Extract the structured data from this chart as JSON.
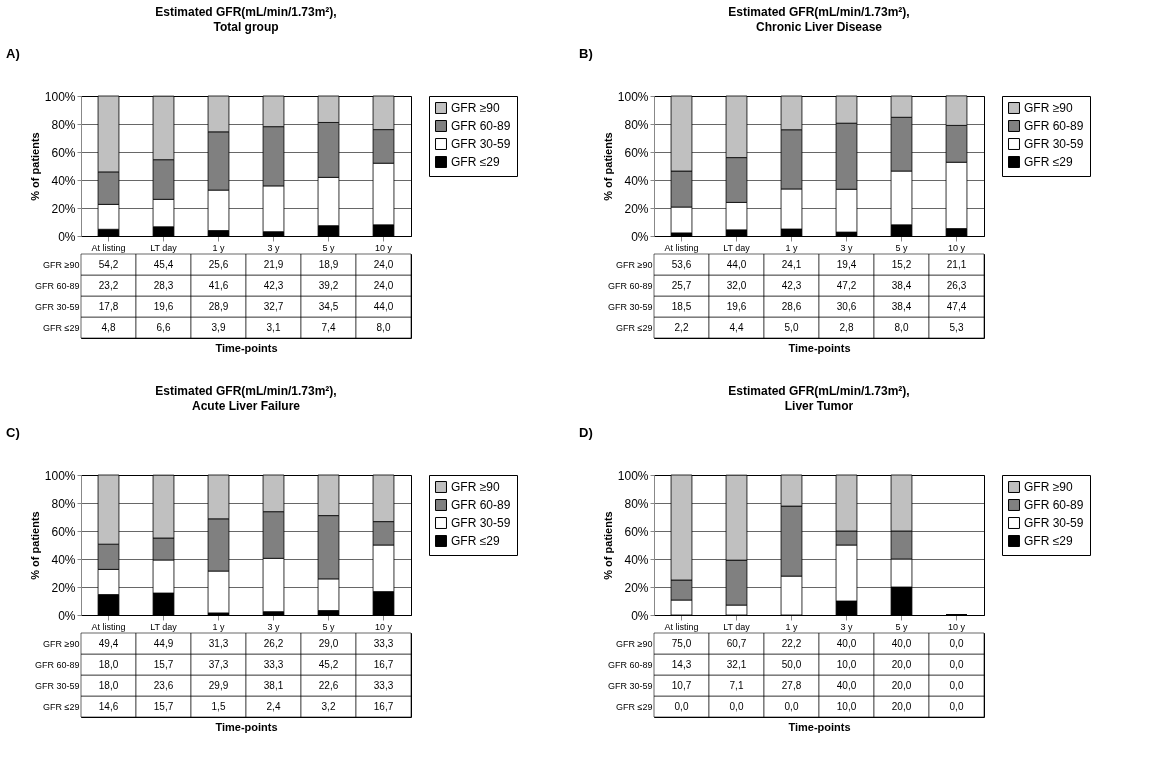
{
  "chart_data": [
    {
      "type": "bar",
      "stacked": true,
      "title": "Estimated GFR(mL/min/1.73m²),",
      "subtitle": "Total group",
      "annotations": [
        "A)"
      ],
      "xlabel": "Time-points",
      "ylabel": "% of patients",
      "categories": [
        "At listing",
        "LT day",
        "1 y",
        "3 y",
        "5 y",
        "10 y"
      ],
      "ylim": [
        0,
        100
      ],
      "yticks": [
        {
          "value": 0,
          "label": "0%"
        },
        {
          "value": 20,
          "label": "20%"
        },
        {
          "value": 40,
          "label": "40%"
        },
        {
          "value": 60,
          "label": "60%"
        },
        {
          "value": 80,
          "label": "80%"
        },
        {
          "value": 100,
          "label": "100%"
        }
      ],
      "grid": "y",
      "legend": "right",
      "series": [
        {
          "name": "GFR ≤29",
          "color": "#000000",
          "values": [
            4.8,
            6.6,
            3.9,
            3.1,
            7.4,
            8.0
          ],
          "value_labels": [
            "4,8",
            "6,6",
            "3,9",
            "3,1",
            "7,4",
            "8,0"
          ]
        },
        {
          "name": "GFR 30-59",
          "color": "#ffffff",
          "values": [
            17.8,
            19.6,
            28.9,
            32.7,
            34.5,
            44.0
          ],
          "value_labels": [
            "17,8",
            "19,6",
            "28,9",
            "32,7",
            "34,5",
            "44,0"
          ]
        },
        {
          "name": "GFR 60-89",
          "color": "#808080",
          "values": [
            23.2,
            28.3,
            41.6,
            42.3,
            39.2,
            24.0
          ],
          "value_labels": [
            "23,2",
            "28,3",
            "41,6",
            "42,3",
            "39,2",
            "24,0"
          ]
        },
        {
          "name": "GFR ≥90",
          "color": "#c0c0c0",
          "values": [
            54.2,
            45.4,
            25.6,
            21.9,
            18.9,
            24.0
          ],
          "value_labels": [
            "54,2",
            "45,4",
            "25,6",
            "21,9",
            "18,9",
            "24,0"
          ]
        }
      ]
    },
    {
      "type": "bar",
      "stacked": true,
      "title": "Estimated GFR(mL/min/1.73m²),",
      "subtitle": "Chronic Liver Disease",
      "annotations": [
        "B)"
      ],
      "xlabel": "Time-points",
      "ylabel": "% of patients",
      "categories": [
        "At listing",
        "LT day",
        "1 y",
        "3 y",
        "5 y",
        "10 y"
      ],
      "ylim": [
        0,
        100
      ],
      "yticks": [
        {
          "value": 0,
          "label": "0%"
        },
        {
          "value": 20,
          "label": "20%"
        },
        {
          "value": 40,
          "label": "40%"
        },
        {
          "value": 60,
          "label": "60%"
        },
        {
          "value": 80,
          "label": "80%"
        },
        {
          "value": 100,
          "label": "100%"
        }
      ],
      "grid": "y",
      "legend": "right",
      "series": [
        {
          "name": "GFR ≤29",
          "color": "#000000",
          "values": [
            2.2,
            4.4,
            5.0,
            2.8,
            8.0,
            5.3
          ],
          "value_labels": [
            "2,2",
            "4,4",
            "5,0",
            "2,8",
            "8,0",
            "5,3"
          ]
        },
        {
          "name": "GFR 30-59",
          "color": "#ffffff",
          "values": [
            18.5,
            19.6,
            28.6,
            30.6,
            38.4,
            47.4
          ],
          "value_labels": [
            "18,5",
            "19,6",
            "28,6",
            "30,6",
            "38,4",
            "47,4"
          ]
        },
        {
          "name": "GFR 60-89",
          "color": "#808080",
          "values": [
            25.7,
            32.0,
            42.3,
            47.2,
            38.4,
            26.3
          ],
          "value_labels": [
            "25,7",
            "32,0",
            "42,3",
            "47,2",
            "38,4",
            "26,3"
          ]
        },
        {
          "name": "GFR ≥90",
          "color": "#c0c0c0",
          "values": [
            53.6,
            44.0,
            24.1,
            19.4,
            15.2,
            21.1
          ],
          "value_labels": [
            "53,6",
            "44,0",
            "24,1",
            "19,4",
            "15,2",
            "21,1"
          ]
        }
      ]
    },
    {
      "type": "bar",
      "stacked": true,
      "title": "Estimated GFR(mL/min/1.73m²),",
      "subtitle": "Acute Liver Failure",
      "annotations": [
        "C)"
      ],
      "xlabel": "Time-points",
      "ylabel": "% of patients",
      "categories": [
        "At listing",
        "LT day",
        "1 y",
        "3 y",
        "5 y",
        "10 y"
      ],
      "ylim": [
        0,
        100
      ],
      "yticks": [
        {
          "value": 0,
          "label": "0%"
        },
        {
          "value": 20,
          "label": "20%"
        },
        {
          "value": 40,
          "label": "40%"
        },
        {
          "value": 60,
          "label": "60%"
        },
        {
          "value": 80,
          "label": "80%"
        },
        {
          "value": 100,
          "label": "100%"
        }
      ],
      "grid": "y",
      "legend": "right",
      "series": [
        {
          "name": "GFR ≤29",
          "color": "#000000",
          "values": [
            14.6,
            15.7,
            1.5,
            2.4,
            3.2,
            16.7
          ],
          "value_labels": [
            "14,6",
            "15,7",
            "1,5",
            "2,4",
            "3,2",
            "16,7"
          ]
        },
        {
          "name": "GFR 30-59",
          "color": "#ffffff",
          "values": [
            18.0,
            23.6,
            29.9,
            38.1,
            22.6,
            33.3
          ],
          "value_labels": [
            "18,0",
            "23,6",
            "29,9",
            "38,1",
            "22,6",
            "33,3"
          ]
        },
        {
          "name": "GFR 60-89",
          "color": "#808080",
          "values": [
            18.0,
            15.7,
            37.3,
            33.3,
            45.2,
            16.7
          ],
          "value_labels": [
            "18,0",
            "15,7",
            "37,3",
            "33,3",
            "45,2",
            "16,7"
          ]
        },
        {
          "name": "GFR ≥90",
          "color": "#c0c0c0",
          "values": [
            49.4,
            44.9,
            31.3,
            26.2,
            29.0,
            33.3
          ],
          "value_labels": [
            "49,4",
            "44,9",
            "31,3",
            "26,2",
            "29,0",
            "33,3"
          ]
        }
      ]
    },
    {
      "type": "bar",
      "stacked": true,
      "title": "Estimated GFR(mL/min/1.73m²),",
      "subtitle": "Liver Tumor",
      "annotations": [
        "D)"
      ],
      "xlabel": "Time-points",
      "ylabel": "% of patients",
      "categories": [
        "At listing",
        "LT day",
        "1 y",
        "3 y",
        "5 y",
        "10 y"
      ],
      "ylim": [
        0,
        100
      ],
      "yticks": [
        {
          "value": 0,
          "label": "0%"
        },
        {
          "value": 20,
          "label": "20%"
        },
        {
          "value": 40,
          "label": "40%"
        },
        {
          "value": 60,
          "label": "60%"
        },
        {
          "value": 80,
          "label": "80%"
        },
        {
          "value": 100,
          "label": "100%"
        }
      ],
      "grid": "y",
      "legend": "right",
      "series": [
        {
          "name": "GFR ≤29",
          "color": "#000000",
          "values": [
            0.0,
            0.0,
            0.0,
            10.0,
            20.0,
            0.0
          ],
          "value_labels": [
            "0,0",
            "0,0",
            "0,0",
            "10,0",
            "20,0",
            "0,0"
          ]
        },
        {
          "name": "GFR 30-59",
          "color": "#ffffff",
          "values": [
            10.7,
            7.1,
            27.8,
            40.0,
            20.0,
            0.0
          ],
          "value_labels": [
            "10,7",
            "7,1",
            "27,8",
            "40,0",
            "20,0",
            "0,0"
          ]
        },
        {
          "name": "GFR 60-89",
          "color": "#808080",
          "values": [
            14.3,
            32.1,
            50.0,
            10.0,
            20.0,
            0.0
          ],
          "value_labels": [
            "14,3",
            "32,1",
            "50,0",
            "10,0",
            "20,0",
            "0,0"
          ]
        },
        {
          "name": "GFR ≥90",
          "color": "#c0c0c0",
          "values": [
            75.0,
            60.7,
            22.2,
            40.0,
            40.0,
            0.0
          ],
          "value_labels": [
            "75,0",
            "60,7",
            "22,2",
            "40,0",
            "40,0",
            "0,0"
          ]
        }
      ]
    }
  ]
}
